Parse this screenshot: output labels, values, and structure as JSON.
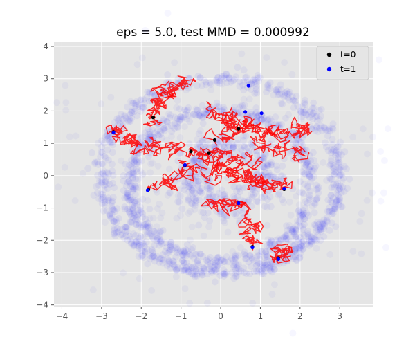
{
  "chart_data": {
    "type": "scatter",
    "title": "eps = 5.0, test MMD = 0.000992",
    "xlabel": "",
    "ylabel": "",
    "xlim": [
      -4.2,
      3.85
    ],
    "ylim": [
      -4.05,
      4.15
    ],
    "x_ticks": [
      -4,
      -3,
      -2,
      -1,
      0,
      1,
      2,
      3
    ],
    "y_ticks": [
      -4,
      -3,
      -2,
      -1,
      0,
      1,
      2,
      3,
      4
    ],
    "grid": true,
    "legend_position": "top-right",
    "colors": {
      "background": "#e5e5e5",
      "grid": "#ffffff",
      "cloud": "#0000ff",
      "trajectory": "#ff0000",
      "t0": "#000000",
      "t1": "#0000ff"
    },
    "series": [
      {
        "name": "t=0",
        "color": "#000000",
        "points": [
          [
            -1.7,
            1.8
          ],
          [
            -2.7,
            1.35
          ],
          [
            -0.75,
            0.75
          ],
          [
            -0.9,
            0.32
          ],
          [
            -1.82,
            -0.43
          ],
          [
            0.45,
            1.45
          ],
          [
            1.6,
            -0.42
          ],
          [
            0.8,
            -2.2
          ],
          [
            1.45,
            -2.55
          ],
          [
            0.45,
            -0.85
          ],
          [
            -0.3,
            0.7
          ],
          [
            -0.15,
            1.1
          ]
        ]
      },
      {
        "name": "t=1",
        "color": "#0000ff",
        "points": [
          [
            0.7,
            2.78
          ],
          [
            0.62,
            1.97
          ],
          [
            1.03,
            1.93
          ],
          [
            -2.7,
            1.33
          ],
          [
            -1.84,
            -0.45
          ],
          [
            -0.9,
            0.33
          ],
          [
            1.45,
            -2.58
          ],
          [
            0.8,
            -2.22
          ],
          [
            1.6,
            -0.4
          ],
          [
            0.45,
            -0.85
          ]
        ]
      }
    ],
    "cloud_rings": [
      {
        "center": [
          0.0,
          0.0
        ],
        "radius": 3.0
      },
      {
        "center": [
          0.0,
          -0.3
        ],
        "radius": 2.3
      },
      {
        "center": [
          0.2,
          0.0
        ],
        "radius": 1.0
      }
    ],
    "trajectories": [
      {
        "start": [
          -1.7,
          1.8
        ],
        "end": [
          -1.4,
          2.6
        ]
      },
      {
        "start": [
          -1.4,
          2.6
        ],
        "end": [
          -0.9,
          3.0
        ]
      },
      {
        "start": [
          -2.7,
          1.35
        ],
        "end": [
          -2.1,
          1.0
        ]
      },
      {
        "start": [
          -2.1,
          1.0
        ],
        "end": [
          -0.9,
          0.75
        ]
      },
      {
        "start": [
          -0.75,
          0.75
        ],
        "end": [
          0.4,
          0.2
        ]
      },
      {
        "start": [
          -0.9,
          0.32
        ],
        "end": [
          0.6,
          -0.1
        ]
      },
      {
        "start": [
          -1.82,
          -0.43
        ],
        "end": [
          -0.5,
          0.1
        ]
      },
      {
        "start": [
          0.45,
          1.45
        ],
        "end": [
          1.5,
          1.2
        ]
      },
      {
        "start": [
          1.5,
          1.2
        ],
        "end": [
          2.3,
          1.6
        ]
      },
      {
        "start": [
          1.6,
          -0.42
        ],
        "end": [
          0.7,
          -0.2
        ]
      },
      {
        "start": [
          0.8,
          -2.2
        ],
        "end": [
          0.6,
          -1.0
        ]
      },
      {
        "start": [
          1.45,
          -2.55
        ],
        "end": [
          1.7,
          -2.5
        ]
      },
      {
        "start": [
          0.45,
          -0.85
        ],
        "end": [
          -0.5,
          -0.9
        ]
      },
      {
        "start": [
          -0.3,
          0.7
        ],
        "end": [
          0.8,
          0.4
        ]
      },
      {
        "start": [
          -0.15,
          1.1
        ],
        "end": [
          0.6,
          1.8
        ]
      },
      {
        "start": [
          0.9,
          0.9
        ],
        "end": [
          2.2,
          0.6
        ]
      },
      {
        "start": [
          -0.2,
          2.0
        ],
        "end": [
          1.0,
          1.5
        ]
      },
      {
        "start": [
          0.5,
          0.0
        ],
        "end": [
          1.2,
          -0.3
        ]
      }
    ]
  }
}
